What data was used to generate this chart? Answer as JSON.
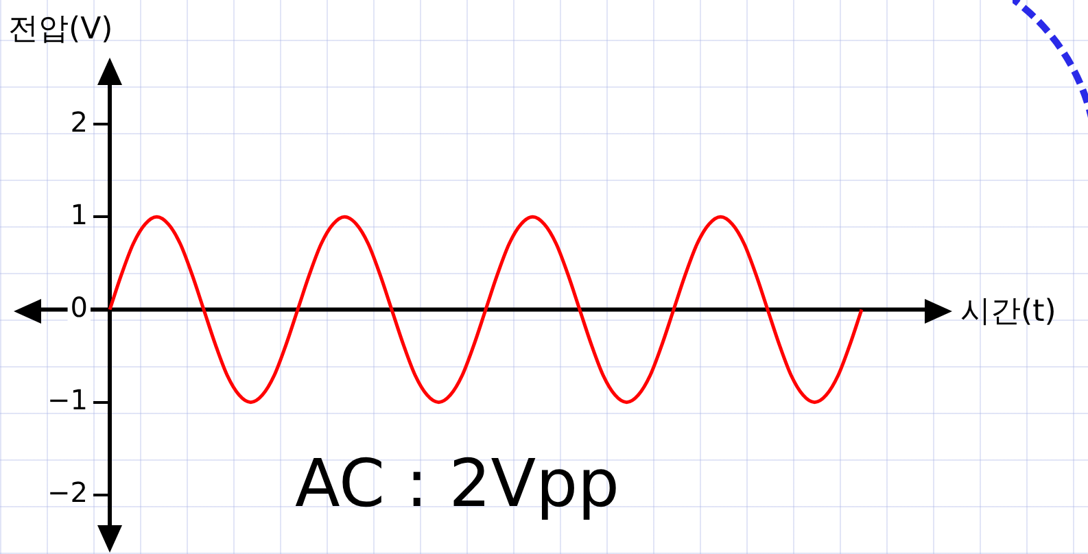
{
  "chart_data": {
    "type": "line",
    "ylabel": "전압(V)",
    "xlabel": "시간(t)",
    "annotations": [
      "AC : 2Vpp"
    ],
    "categories": [
      null,
      null,
      null,
      null,
      null,
      null,
      null,
      null,
      null,
      null,
      null,
      null,
      null,
      null,
      null,
      null,
      null,
      null,
      null,
      null,
      null,
      null,
      null,
      null,
      null,
      null,
      null,
      null,
      null,
      null,
      null,
      null,
      null,
      null,
      null,
      null,
      null,
      null,
      null,
      null,
      null,
      null,
      null,
      null,
      null,
      null,
      null,
      null,
      null,
      null,
      null,
      null,
      null,
      null,
      null,
      null,
      null,
      null,
      null,
      null,
      null,
      null,
      null,
      null,
      null
    ],
    "series": [
      {
        "color": "#ff0000",
        "values": [
          0,
          0.38,
          0.71,
          0.92,
          1,
          0.92,
          0.71,
          0.38,
          0,
          -0.38,
          -0.71,
          -0.92,
          -1,
          -0.92,
          -0.71,
          -0.38,
          0,
          0.38,
          0.71,
          0.92,
          1,
          0.92,
          0.71,
          0.38,
          0,
          -0.38,
          -0.71,
          -0.92,
          -1,
          -0.92,
          -0.71,
          -0.38,
          0,
          0.38,
          0.71,
          0.92,
          1,
          0.92,
          0.71,
          0.38,
          0,
          -0.38,
          -0.71,
          -0.92,
          -1,
          -0.92,
          -0.71,
          -0.38,
          0,
          0.38,
          0.71,
          0.92,
          1,
          0.92,
          0.71,
          0.38,
          0,
          -0.38,
          -0.71,
          -0.92,
          -1,
          -0.92,
          -0.71,
          -0.38,
          0
        ]
      }
    ],
    "ylim": [
      -2.4,
      2.6
    ],
    "yticks": [
      {
        "value": -2,
        "label": "−2"
      },
      {
        "value": -1,
        "label": "−1"
      },
      0,
      1,
      2
    ],
    "tick_labels": "y",
    "marker": "none",
    "line_style": "solid"
  }
}
